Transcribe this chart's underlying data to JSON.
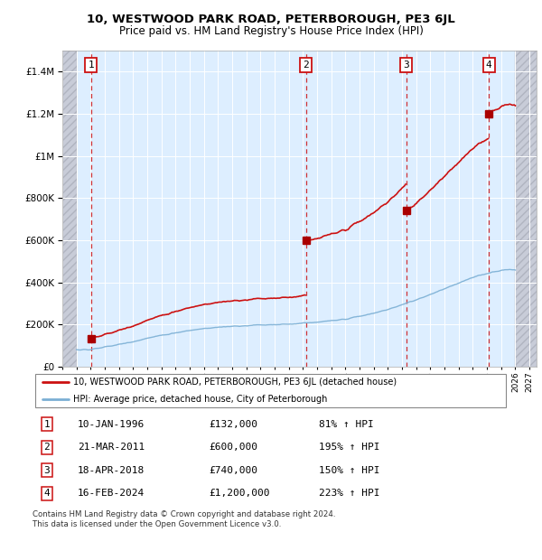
{
  "title": "10, WESTWOOD PARK ROAD, PETERBOROUGH, PE3 6JL",
  "subtitle": "Price paid vs. HM Land Registry's House Price Index (HPI)",
  "footer": "Contains HM Land Registry data © Crown copyright and database right 2024.\nThis data is licensed under the Open Government Licence v3.0.",
  "transactions": [
    {
      "num": 1,
      "date": "1996-01-10",
      "price": 132000,
      "pct": "81%",
      "x_year": 1996.04
    },
    {
      "num": 2,
      "date": "2011-03-21",
      "price": 600000,
      "pct": "195%",
      "x_year": 2011.22
    },
    {
      "num": 3,
      "date": "2018-04-18",
      "price": 740000,
      "pct": "150%",
      "x_year": 2018.3
    },
    {
      "num": 4,
      "date": "2024-02-16",
      "price": 1200000,
      "pct": "223%",
      "x_year": 2024.13
    }
  ],
  "hpi_line_color": "#7bafd4",
  "price_line_color": "#cc1111",
  "dot_color": "#aa0000",
  "dashed_line_color": "#cc1111",
  "background_plot": "#ddeeff",
  "background_hatch_color": "#c8ccd8",
  "ylim": [
    0,
    1500000
  ],
  "xlim_start": 1994.0,
  "xlim_end": 2027.5,
  "legend_label_price": "10, WESTWOOD PARK ROAD, PETERBOROUGH, PE3 6JL (detached house)",
  "legend_label_hpi": "HPI: Average price, detached house, City of Peterborough",
  "table_rows": [
    {
      "num": 1,
      "date": "10-JAN-1996",
      "price": "£132,000",
      "pct": "81% ↑ HPI"
    },
    {
      "num": 2,
      "date": "21-MAR-2011",
      "price": "£600,000",
      "pct": "195% ↑ HPI"
    },
    {
      "num": 3,
      "date": "18-APR-2018",
      "price": "£740,000",
      "pct": "150% ↑ HPI"
    },
    {
      "num": 4,
      "date": "16-FEB-2024",
      "price": "£1,200,000",
      "pct": "223% ↑ HPI"
    }
  ]
}
